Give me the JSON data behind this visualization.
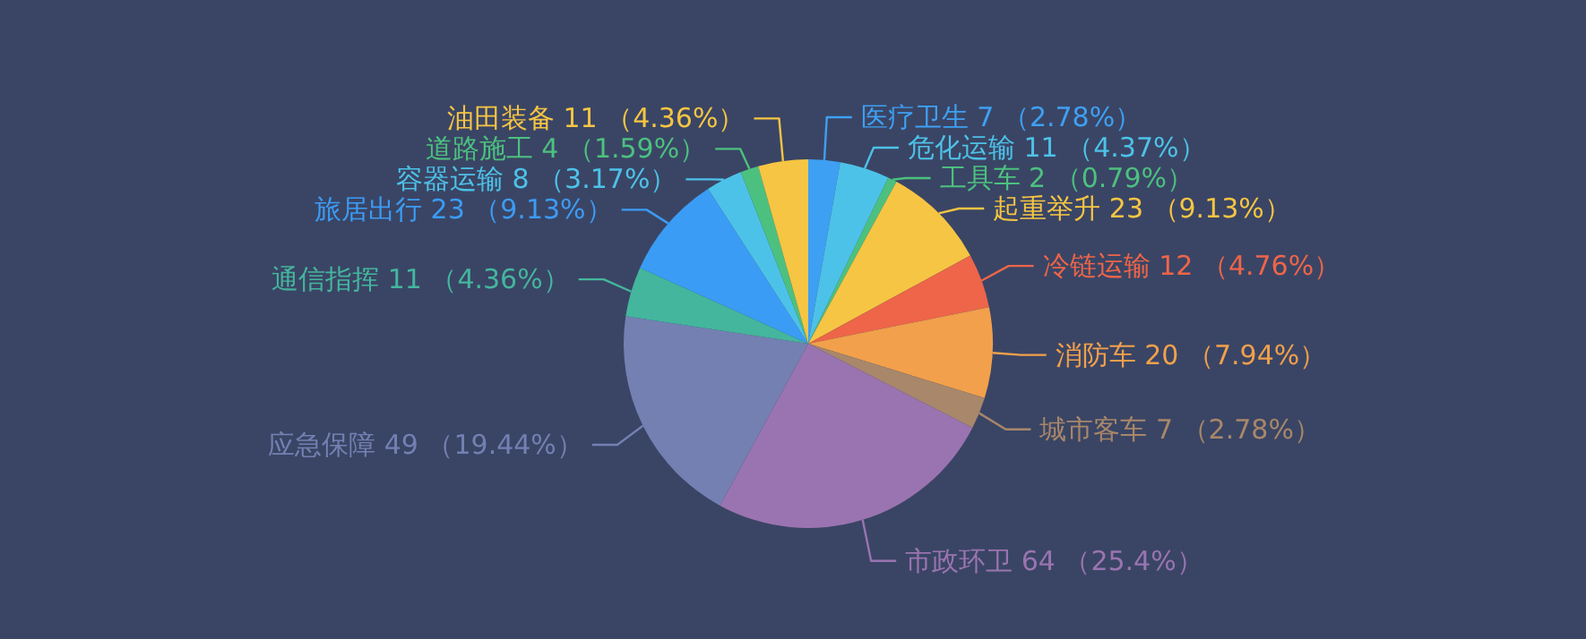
{
  "chart_data": {
    "type": "pie",
    "categories": [
      "医疗卫生",
      "危化运输",
      "工具车",
      "起重举升",
      "冷链运输",
      "消防车",
      "城市客车",
      "市政环卫",
      "应急保障",
      "通信指挥",
      "旅居出行",
      "容器运输",
      "道路施工",
      "油田装备"
    ],
    "values": [
      7,
      11,
      2,
      23,
      12,
      20,
      7,
      64,
      49,
      11,
      23,
      8,
      4,
      11
    ],
    "colors": [
      "#3ea0f3",
      "#4dc2e8",
      "#4cc17f",
      "#f6c543",
      "#ee6549",
      "#f2a04b",
      "#a8876a",
      "#9a74b0",
      "#7480b2",
      "#44b69d",
      "#3b9cf5",
      "#4dc2e8",
      "#4cc17f",
      "#f6c543"
    ],
    "value_labels": [
      "7 （2.78%）",
      "11 （4.37%）",
      "2 （0.79%）",
      "23 （9.13%）",
      "12 （4.76%）",
      "20 （7.94%）",
      "7 （2.78%）",
      "64 （25.4%）",
      "49 （19.44%）",
      "11 （4.36%）",
      "23 （9.13%）",
      "8 （3.17%）",
      "4 （1.59%）",
      "11 （4.36%）"
    ]
  }
}
